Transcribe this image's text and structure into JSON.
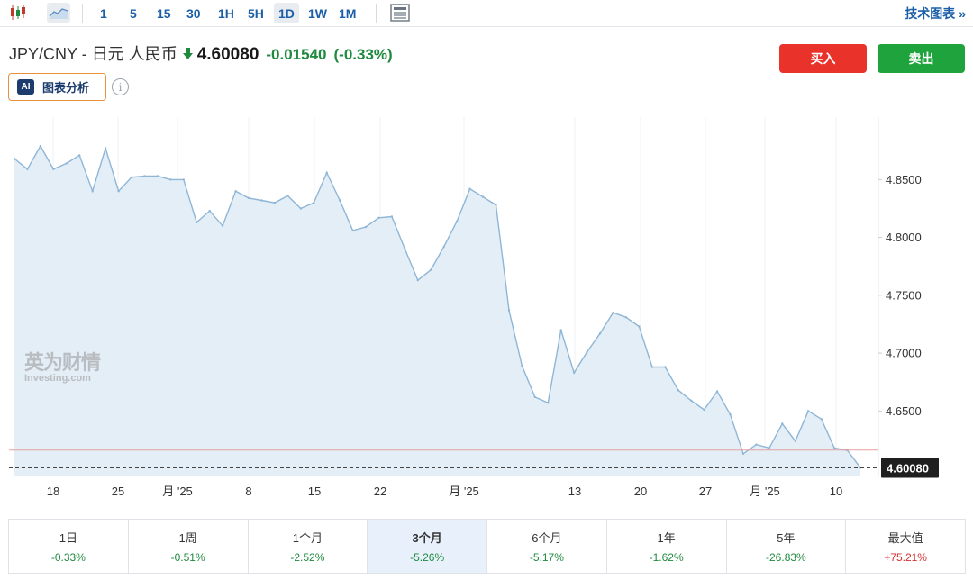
{
  "toolbar": {
    "timeframes": [
      "1",
      "5",
      "15",
      "30",
      "1H",
      "5H",
      "1D",
      "1W",
      "1M"
    ],
    "selected_timeframe": "1D",
    "tech_chart_link": "技术图表 »"
  },
  "quote": {
    "pair": "JPY/CNY - 日元 人民币",
    "price": "4.60080",
    "change": "-0.01540",
    "change_pct": "(-0.33%)"
  },
  "ai_button": {
    "badge": "AI",
    "label": "图表分析"
  },
  "actions": {
    "buy_label": "买入",
    "sell_label": "卖出"
  },
  "watermark": {
    "cn": "英为财情",
    "en": "Investing.com"
  },
  "colors": {
    "up": "#d62f2f",
    "down": "#1e8a3e",
    "line": "#8fb6d6",
    "fill": "#e3eef7"
  },
  "chart_data": {
    "type": "area",
    "x_tick_labels": [
      "18",
      "25",
      "月 '25",
      "8",
      "15",
      "22",
      "月 '25",
      "13",
      "20",
      "27",
      "月 '25",
      "10"
    ],
    "y_tick_labels": [
      "4.8500",
      "4.8000",
      "4.7500",
      "4.7000",
      "4.6500"
    ],
    "ylim": [
      4.5942,
      4.904
    ],
    "last_price_label": "4.60080",
    "last_price": 4.6008,
    "previous_close": 4.6162,
    "series": [
      {
        "values": [
          4.868,
          4.859,
          4.879,
          4.859,
          4.864,
          4.871,
          4.84,
          4.877,
          4.84,
          4.852,
          4.853,
          4.853,
          4.85,
          4.85,
          4.813,
          4.823,
          4.81,
          4.84,
          4.834,
          4.832,
          4.83,
          4.836,
          4.825,
          4.83,
          4.856,
          4.832,
          4.806,
          4.809,
          4.817,
          4.818,
          4.79,
          4.763,
          4.772,
          4.792,
          4.814,
          4.842,
          4.835,
          4.828,
          4.737,
          4.689,
          4.662,
          4.657,
          4.72,
          4.683,
          4.701,
          4.717,
          4.735,
          4.731,
          4.723,
          4.688,
          4.688,
          4.668,
          4.659,
          4.651,
          4.667,
          4.647,
          4.613,
          4.621,
          4.618,
          4.639,
          4.624,
          4.65,
          4.643,
          4.618,
          4.616,
          4.601
        ]
      }
    ]
  },
  "performance": [
    {
      "label": "1日",
      "value": "-0.33%",
      "dir": "down"
    },
    {
      "label": "1周",
      "value": "-0.51%",
      "dir": "down"
    },
    {
      "label": "1个月",
      "value": "-2.52%",
      "dir": "down"
    },
    {
      "label": "3个月",
      "value": "-5.26%",
      "dir": "down",
      "selected": true
    },
    {
      "label": "6个月",
      "value": "-5.17%",
      "dir": "down"
    },
    {
      "label": "1年",
      "value": "-1.62%",
      "dir": "down"
    },
    {
      "label": "5年",
      "value": "-26.83%",
      "dir": "down"
    },
    {
      "label": "最大值",
      "value": "+75.21%",
      "dir": "up"
    }
  ]
}
